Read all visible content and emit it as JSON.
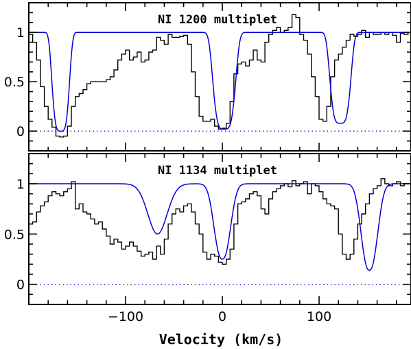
{
  "chart_data": [
    {
      "type": "line",
      "title": "NI 1200 multiplet",
      "xlabel": "Velocity (km/s)",
      "ylabel": "",
      "xlim": [
        -200,
        195
      ],
      "ylim": [
        -0.2,
        1.3
      ],
      "y_ticks": [
        "0",
        "0.5",
        "1"
      ],
      "x_ticks": [
        "−100",
        "0",
        "100"
      ],
      "zero_line": {
        "y": 0,
        "style": "dotted",
        "color": "#1a1ad6"
      },
      "series": [
        {
          "color": "#000000",
          "style": "histogram",
          "x": [
            -200,
            -196,
            -192,
            -188,
            -184,
            -180,
            -176,
            -172,
            -168,
            -164,
            -160,
            -156,
            -152,
            -148,
            -144,
            -140,
            -136,
            -132,
            -128,
            -124,
            -120,
            -116,
            -112,
            -108,
            -104,
            -100,
            -96,
            -92,
            -88,
            -84,
            -80,
            -76,
            -72,
            -68,
            -64,
            -60,
            -56,
            -52,
            -48,
            -44,
            -40,
            -36,
            -32,
            -28,
            -24,
            -20,
            -16,
            -12,
            -8,
            -4,
            0,
            4,
            8,
            12,
            16,
            20,
            24,
            28,
            32,
            36,
            40,
            44,
            48,
            52,
            56,
            60,
            64,
            68,
            72,
            76,
            80,
            84,
            88,
            92,
            96,
            100,
            104,
            108,
            112,
            116,
            120,
            124,
            128,
            132,
            136,
            140,
            144,
            148,
            152,
            156,
            160,
            164,
            168,
            172,
            176,
            180,
            184,
            188,
            192
          ],
          "y": [
            0.98,
            0.9,
            0.72,
            0.45,
            0.25,
            0.12,
            0.04,
            -0.05,
            -0.06,
            -0.05,
            0.05,
            0.25,
            0.35,
            0.38,
            0.42,
            0.48,
            0.5,
            0.5,
            0.5,
            0.5,
            0.52,
            0.55,
            0.62,
            0.72,
            0.78,
            0.82,
            0.72,
            0.75,
            0.8,
            0.7,
            0.72,
            0.8,
            0.82,
            0.95,
            0.92,
            0.88,
            0.98,
            0.95,
            0.95,
            0.96,
            0.97,
            0.88,
            0.6,
            0.35,
            0.15,
            0.1,
            0.1,
            0.12,
            0.05,
            0.02,
            0.03,
            0.08,
            0.3,
            0.58,
            0.68,
            0.7,
            0.66,
            0.72,
            0.82,
            0.72,
            0.7,
            0.9,
            0.98,
            1.02,
            1.05,
            1.0,
            1.02,
            1.05,
            1.18,
            1.15,
            0.98,
            0.92,
            0.78,
            0.55,
            0.35,
            0.12,
            0.1,
            0.25,
            0.55,
            0.72,
            0.78,
            0.85,
            0.92,
            0.98,
            0.96,
            0.98,
            1.02,
            0.95,
            1.0,
            0.98,
            0.98,
            1.0,
            0.98,
            1.0,
            0.97,
            0.9,
            0.99,
            0.98,
            1.0
          ]
        },
        {
          "color": "#0000d8",
          "style": "line",
          "components": [
            {
              "center": -167,
              "depth": 1.0,
              "sigma": 10,
              "power": 4
            },
            {
              "center": 2,
              "depth": 0.98,
              "sigma": 13,
              "power": 4
            },
            {
              "center": 122,
              "depth": 0.92,
              "sigma": 12,
              "power": 4
            }
          ]
        }
      ]
    },
    {
      "type": "line",
      "title": "NI 1134 multiplet",
      "xlabel": "Velocity (km/s)",
      "ylabel": "",
      "xlim": [
        -200,
        195
      ],
      "ylim": [
        -0.2,
        1.3
      ],
      "y_ticks": [
        "0",
        "0.5",
        "1"
      ],
      "x_ticks": [
        "−100",
        "0",
        "100"
      ],
      "zero_line": {
        "y": 0,
        "style": "dotted",
        "color": "#1a1ad6"
      },
      "series": [
        {
          "color": "#000000",
          "style": "histogram",
          "x": [
            -200,
            -196,
            -192,
            -188,
            -184,
            -180,
            -176,
            -172,
            -168,
            -164,
            -160,
            -156,
            -152,
            -148,
            -144,
            -140,
            -136,
            -132,
            -128,
            -124,
            -120,
            -116,
            -112,
            -108,
            -104,
            -100,
            -96,
            -92,
            -88,
            -84,
            -80,
            -76,
            -72,
            -68,
            -64,
            -60,
            -56,
            -52,
            -48,
            -44,
            -40,
            -36,
            -32,
            -28,
            -24,
            -20,
            -16,
            -12,
            -8,
            -4,
            0,
            4,
            8,
            12,
            16,
            20,
            24,
            28,
            32,
            36,
            40,
            44,
            48,
            52,
            56,
            60,
            64,
            68,
            72,
            76,
            80,
            84,
            88,
            92,
            96,
            100,
            104,
            108,
            112,
            116,
            120,
            124,
            128,
            132,
            136,
            140,
            144,
            148,
            152,
            156,
            160,
            164,
            168,
            172,
            176,
            180,
            184,
            188,
            192
          ],
          "y": [
            0.6,
            0.62,
            0.72,
            0.78,
            0.82,
            0.88,
            0.92,
            0.9,
            0.88,
            0.92,
            0.95,
            1.02,
            0.75,
            0.8,
            0.72,
            0.7,
            0.65,
            0.6,
            0.62,
            0.55,
            0.48,
            0.4,
            0.45,
            0.42,
            0.35,
            0.38,
            0.42,
            0.38,
            0.33,
            0.28,
            0.3,
            0.32,
            0.25,
            0.38,
            0.3,
            0.45,
            0.6,
            0.7,
            0.75,
            0.72,
            0.78,
            0.8,
            0.72,
            0.6,
            0.5,
            0.32,
            0.25,
            0.3,
            0.28,
            0.22,
            0.2,
            0.25,
            0.35,
            0.6,
            0.8,
            0.82,
            0.85,
            0.9,
            0.92,
            0.88,
            0.75,
            0.7,
            0.85,
            0.92,
            0.95,
            0.98,
            1.0,
            0.97,
            1.03,
            0.98,
            1.0,
            1.02,
            0.9,
            1.0,
            0.98,
            0.92,
            0.85,
            0.8,
            0.78,
            0.75,
            0.5,
            0.3,
            0.25,
            0.3,
            0.45,
            0.6,
            0.7,
            0.8,
            0.9,
            0.95,
            0.98,
            1.05,
            1.0,
            0.98,
            1.0,
            1.02,
            0.98,
            1.0,
            1.0
          ],
          "extras": [
            [
              188,
              1.1
            ],
            [
              191,
              1.05
            ]
          ]
        },
        {
          "color": "#0000d8",
          "style": "line",
          "components": [
            {
              "center": -67,
              "depth": 0.5,
              "sigma": 14,
              "power": 2
            },
            {
              "center": 0,
              "depth": 0.75,
              "sigma": 11,
              "power": 2.4
            },
            {
              "center": 152,
              "depth": 0.86,
              "sigma": 11,
              "power": 2.4
            }
          ]
        }
      ]
    }
  ]
}
